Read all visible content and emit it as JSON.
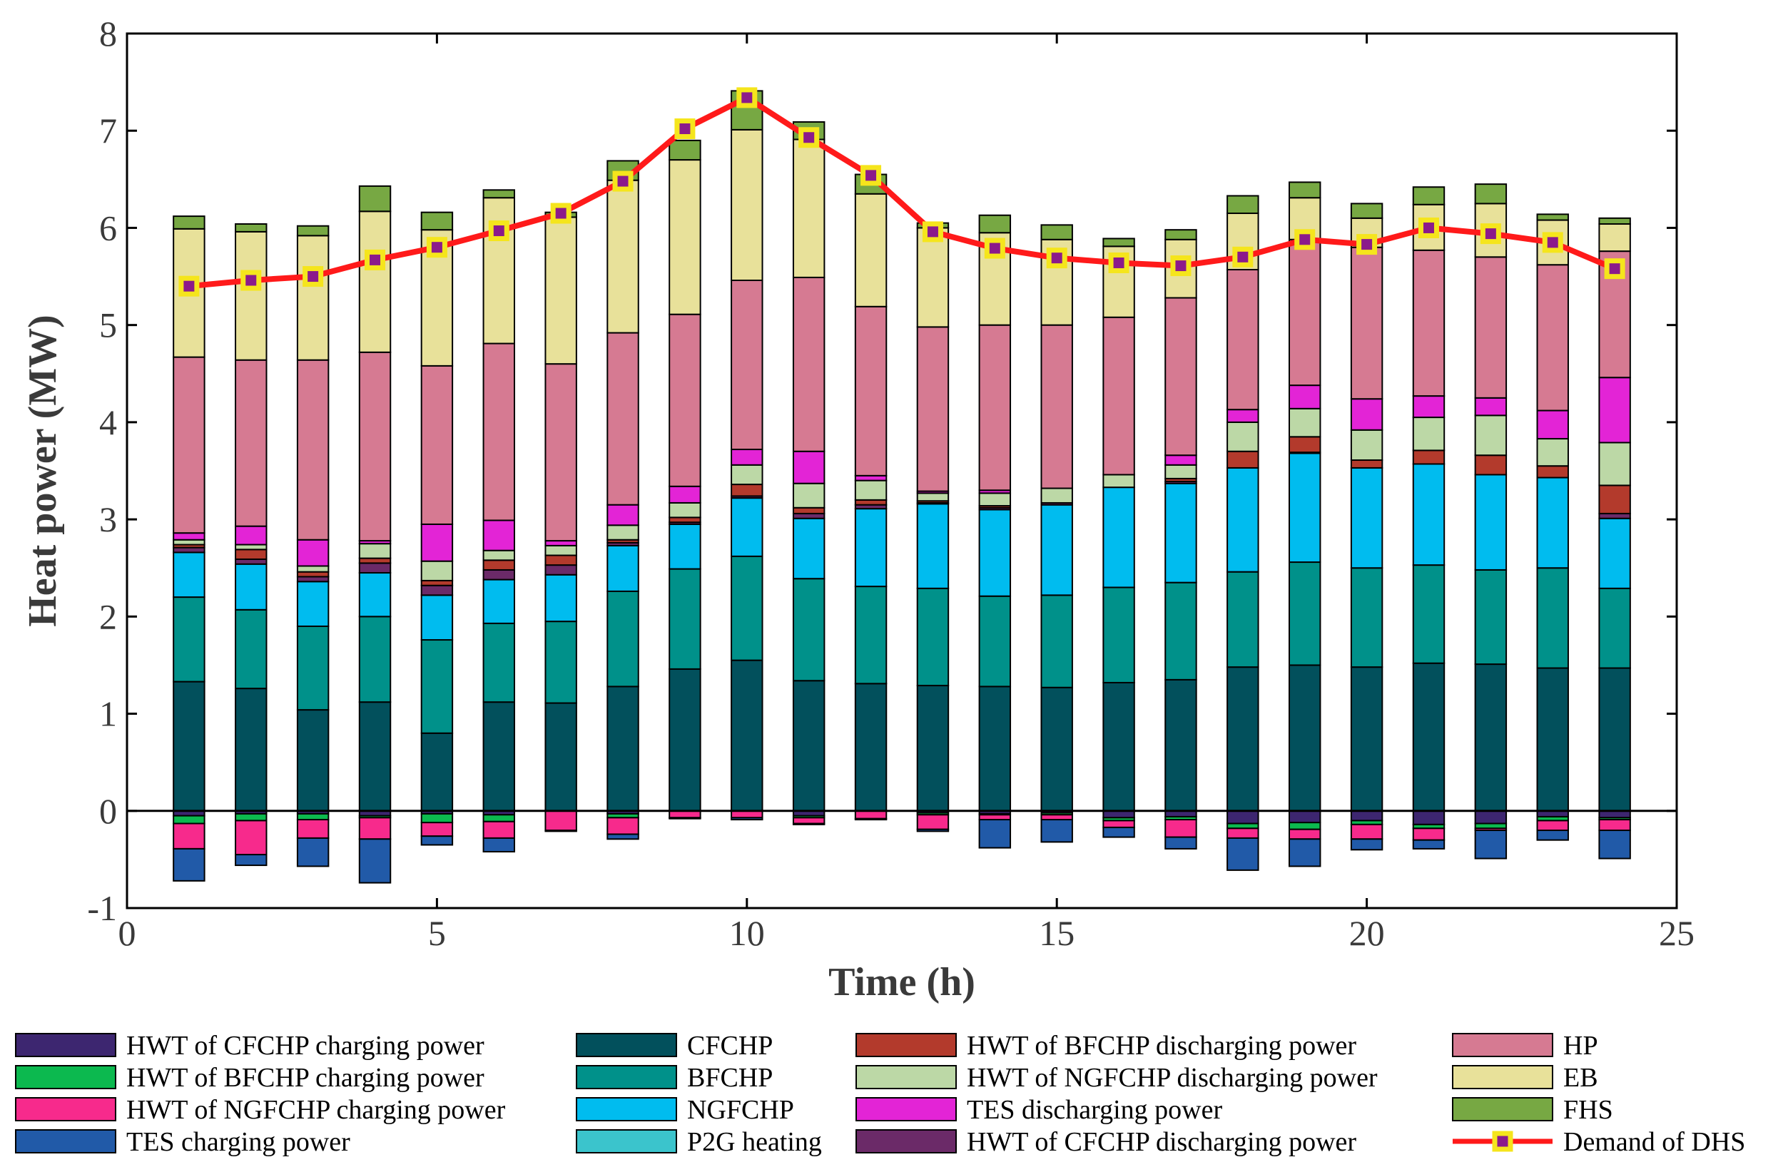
{
  "chart_data": {
    "type": "bar",
    "subtype": "stacked-bar-with-line",
    "title": "",
    "xlabel": "Time (h)",
    "ylabel": "Heat power (MW)",
    "xlim": [
      0,
      25
    ],
    "ylim": [
      -1,
      8
    ],
    "xticks": [
      0,
      5,
      10,
      15,
      20,
      25
    ],
    "yticks": [
      -1,
      0,
      1,
      2,
      3,
      4,
      5,
      6,
      7,
      8
    ],
    "grid": false,
    "legend_position": "bottom",
    "x": [
      1,
      2,
      3,
      4,
      5,
      6,
      7,
      8,
      9,
      10,
      11,
      12,
      13,
      14,
      15,
      16,
      17,
      18,
      19,
      20,
      21,
      22,
      23,
      24
    ],
    "positive_series": [
      {
        "name": "CFCHP",
        "color": "#02505c",
        "values": [
          1.33,
          1.26,
          1.04,
          1.12,
          0.8,
          1.12,
          1.11,
          1.28,
          1.46,
          1.55,
          1.34,
          1.31,
          1.29,
          1.28,
          1.27,
          1.32,
          1.35,
          1.48,
          1.5,
          1.48,
          1.52,
          1.51,
          1.47,
          1.47
        ]
      },
      {
        "name": "BFCHP",
        "color": "#00918a",
        "values": [
          0.87,
          0.81,
          0.86,
          0.88,
          0.96,
          0.81,
          0.84,
          0.98,
          1.03,
          1.07,
          1.05,
          1.0,
          1.0,
          0.93,
          0.95,
          0.98,
          1.0,
          0.98,
          1.06,
          1.02,
          1.01,
          0.97,
          1.03,
          0.82
        ]
      },
      {
        "name": "NGFCHP",
        "color": "#00bcef",
        "values": [
          0.46,
          0.47,
          0.46,
          0.45,
          0.46,
          0.45,
          0.48,
          0.47,
          0.46,
          0.6,
          0.62,
          0.8,
          0.87,
          0.89,
          0.93,
          1.03,
          1.02,
          1.07,
          1.12,
          1.03,
          1.04,
          0.98,
          0.93,
          0.72
        ]
      },
      {
        "name": "P2G heating",
        "color": "#3bc4cc",
        "values": [
          0,
          0,
          0,
          0,
          0,
          0,
          0,
          0,
          0,
          0,
          0,
          0,
          0,
          0,
          0,
          0,
          0,
          0,
          0,
          0,
          0,
          0,
          0,
          0
        ]
      },
      {
        "name": "HWT of CFCHP discharging power",
        "color": "#6b2a68",
        "values": [
          0.05,
          0.05,
          0.05,
          0.1,
          0.1,
          0.1,
          0.1,
          0.03,
          0.02,
          0.02,
          0.05,
          0.04,
          0.01,
          0.02,
          0.02,
          0,
          0.02,
          0,
          0.01,
          0,
          0,
          0,
          0,
          0.05
        ]
      },
      {
        "name": "HWT of BFCHP discharging power",
        "color": "#b33a2c",
        "values": [
          0.03,
          0.1,
          0.05,
          0.05,
          0.05,
          0.1,
          0.1,
          0.03,
          0.05,
          0.12,
          0.06,
          0.05,
          0.02,
          0.02,
          0,
          0,
          0.03,
          0.17,
          0.16,
          0.08,
          0.14,
          0.2,
          0.12,
          0.29
        ]
      },
      {
        "name": "HWT of NGFCHP discharging power",
        "color": "#bcd8a6",
        "values": [
          0.05,
          0.05,
          0.06,
          0.15,
          0.2,
          0.1,
          0.1,
          0.15,
          0.15,
          0.2,
          0.25,
          0.2,
          0.08,
          0.13,
          0.15,
          0.13,
          0.14,
          0.3,
          0.29,
          0.31,
          0.34,
          0.41,
          0.28,
          0.44
        ]
      },
      {
        "name": "TES discharging power",
        "color": "#e324d6",
        "values": [
          0.07,
          0.19,
          0.27,
          0.03,
          0.38,
          0.31,
          0.05,
          0.21,
          0.17,
          0.16,
          0.33,
          0.05,
          0.02,
          0.03,
          0,
          0,
          0.1,
          0.13,
          0.24,
          0.32,
          0.22,
          0.18,
          0.29,
          0.67
        ]
      },
      {
        "name": "HP",
        "color": "#d67a92",
        "values": [
          1.81,
          1.71,
          1.85,
          1.94,
          1.63,
          1.82,
          1.82,
          1.77,
          1.77,
          1.74,
          1.79,
          1.74,
          1.69,
          1.7,
          1.68,
          1.62,
          1.62,
          1.44,
          1.5,
          1.56,
          1.5,
          1.45,
          1.5,
          1.3
        ]
      },
      {
        "name": "EB",
        "color": "#e8e19a",
        "values": [
          1.32,
          1.32,
          1.28,
          1.45,
          1.4,
          1.5,
          1.51,
          1.57,
          1.59,
          1.55,
          1.42,
          1.16,
          1.02,
          0.95,
          0.88,
          0.73,
          0.6,
          0.58,
          0.43,
          0.3,
          0.47,
          0.55,
          0.46,
          0.28
        ]
      },
      {
        "name": "FHS",
        "color": "#77a843",
        "values": [
          0.13,
          0.08,
          0.1,
          0.26,
          0.18,
          0.08,
          0.05,
          0.2,
          0.2,
          0.4,
          0.18,
          0.2,
          0.05,
          0.18,
          0.15,
          0.08,
          0.1,
          0.18,
          0.16,
          0.15,
          0.18,
          0.2,
          0.06,
          0.06
        ]
      }
    ],
    "negative_series": [
      {
        "name": "HWT of CFCHP charging power",
        "color": "#3d2670",
        "values": [
          0.05,
          0.03,
          0.03,
          0.05,
          0.03,
          0.04,
          0,
          0.03,
          0,
          0,
          0.05,
          0,
          0.02,
          0.03,
          0.02,
          0.07,
          0.06,
          0.13,
          0.12,
          0.1,
          0.14,
          0.13,
          0.06,
          0.07
        ]
      },
      {
        "name": "HWT of BFCHP charging power",
        "color": "#0cb94f",
        "values": [
          0.08,
          0.07,
          0.06,
          0.02,
          0.09,
          0.07,
          0,
          0.04,
          0,
          0,
          0.02,
          0,
          0.02,
          0.01,
          0.02,
          0.03,
          0.03,
          0.05,
          0.07,
          0.04,
          0.04,
          0.05,
          0.04,
          0.02
        ]
      },
      {
        "name": "HWT of NGFCHP charging power",
        "color": "#f72a8c",
        "values": [
          0.26,
          0.35,
          0.19,
          0.22,
          0.14,
          0.17,
          0.2,
          0.17,
          0.07,
          0.07,
          0.06,
          0.08,
          0.15,
          0.05,
          0.05,
          0.07,
          0.18,
          0.1,
          0.1,
          0.15,
          0.12,
          0.02,
          0.1,
          0.11
        ]
      },
      {
        "name": "TES charging power",
        "color": "#215aa8",
        "values": [
          0.33,
          0.11,
          0.29,
          0.45,
          0.09,
          0.14,
          0.01,
          0.05,
          0.01,
          0.02,
          0.01,
          0.01,
          0.02,
          0.29,
          0.23,
          0.1,
          0.12,
          0.33,
          0.28,
          0.11,
          0.09,
          0.29,
          0.1,
          0.29
        ]
      }
    ],
    "line_series": {
      "name": "Demand of DHS",
      "color": "#ff1a1a",
      "marker_fill": "#f5e51c",
      "marker_center": "#8b1a8b",
      "values": [
        5.4,
        5.46,
        5.5,
        5.67,
        5.8,
        5.97,
        6.15,
        6.48,
        7.02,
        7.34,
        6.93,
        6.54,
        5.96,
        5.79,
        5.69,
        5.64,
        5.61,
        5.7,
        5.88,
        5.83,
        6.0,
        5.94,
        5.85,
        5.58
      ]
    },
    "legend_order": [
      "HWT of CFCHP charging power",
      "HWT of BFCHP charging power",
      "HWT of NGFCHP charging power",
      "TES charging power",
      "CFCHP",
      "BFCHP",
      "NGFCHP",
      "P2G heating",
      "HWT of BFCHP discharging power",
      "HWT of NGFCHP discharging power",
      "TES discharging power",
      "HWT of CFCHP discharging power",
      "HP",
      "EB",
      "FHS",
      "Demand of DHS"
    ]
  }
}
